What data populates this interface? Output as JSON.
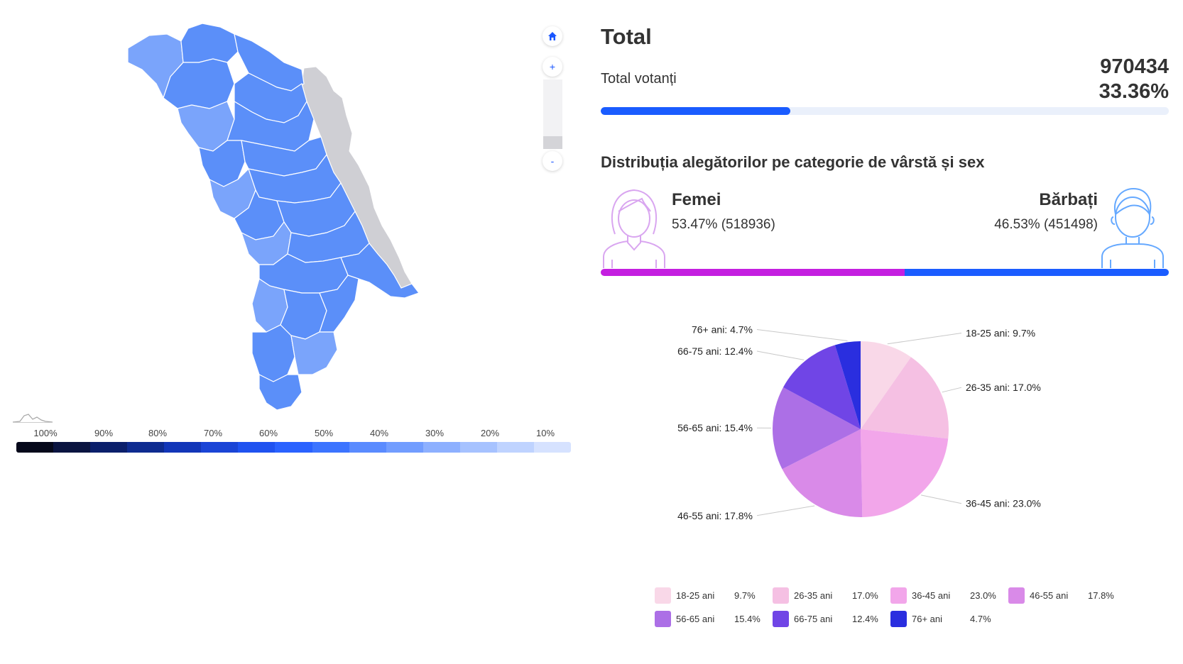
{
  "map": {
    "controls": {
      "home_icon": "home-icon",
      "zoom_in_label": "+",
      "zoom_out_label": "-"
    },
    "legend_ticks": [
      "100%",
      "90%",
      "80%",
      "70%",
      "60%",
      "50%",
      "40%",
      "30%",
      "20%",
      "10%"
    ],
    "legend_colors": [
      "#05081a",
      "#0a1440",
      "#0b1f6b",
      "#0e2b90",
      "#1236b8",
      "#1a44d6",
      "#1f52f0",
      "#2a62ff",
      "#3c74ff",
      "#5a8bff",
      "#729dff",
      "#8db0ff",
      "#a6c2ff",
      "#bfd3ff",
      "#d6e2ff"
    ],
    "region_color": "#5b8ff9",
    "region_light_color": "#7aa4fb",
    "transnistria_color": "#cfcfd4"
  },
  "summary": {
    "title": "Total",
    "voters_label": "Total votanți",
    "voters_value": "970434",
    "voters_percent": "33.36%",
    "turnout_fraction": 0.3336
  },
  "distribution": {
    "title": "Distribuția alegătorilor pe categorie de vârstă și sex",
    "female": {
      "label": "Femei",
      "value": "53.47% (518936)",
      "share": 53.47,
      "color": "#c41fe0"
    },
    "male": {
      "label": "Bărbați",
      "value": "46.53% (451498)",
      "share": 46.53,
      "color": "#1a5cff"
    }
  },
  "chart_data": {
    "type": "pie",
    "categories": [
      "18-25 ani",
      "26-35 ani",
      "36-45 ani",
      "46-55 ani",
      "56-65 ani",
      "66-75 ani",
      "76+ ani"
    ],
    "values": [
      9.7,
      17.0,
      23.0,
      17.8,
      15.4,
      12.4,
      4.7
    ],
    "value_labels": [
      "9.7%",
      "17.0%",
      "23.0%",
      "17.8%",
      "15.4%",
      "12.4%",
      "4.7%"
    ],
    "slice_labels": [
      "18-25 ani: 9.7%",
      "26-35 ani: 17.0%",
      "36-45 ani: 23.0%",
      "46-55 ani: 17.8%",
      "56-65 ani: 15.4%",
      "66-75 ani: 12.4%",
      "76+ ani: 4.7%"
    ],
    "colors": [
      "#f9d8e8",
      "#f5c0e3",
      "#f2a6ea",
      "#d98ae8",
      "#ac6fe6",
      "#7045e6",
      "#2a2edf"
    ],
    "legend_placement": "bottom"
  }
}
